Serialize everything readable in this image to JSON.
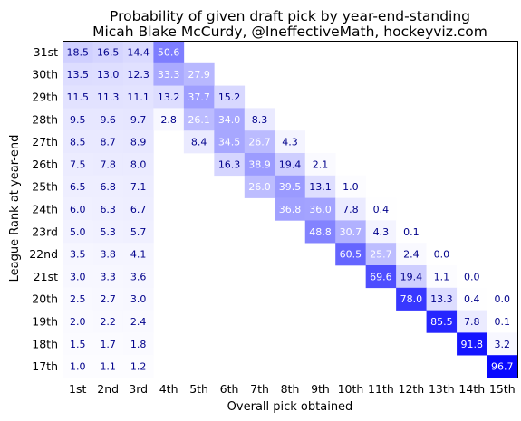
{
  "chart_data": {
    "type": "heatmap",
    "title": "Probability of given draft pick by year-end-standing",
    "subtitle": "Micah Blake McCurdy, @IneffectiveMath, hockeyviz.com",
    "xlabel": "Overall pick obtained",
    "ylabel": "League Rank at year-end",
    "x_categories": [
      "1st",
      "2nd",
      "3rd",
      "4th",
      "5th",
      "6th",
      "7th",
      "8th",
      "9th",
      "10th",
      "11th",
      "12th",
      "13th",
      "14th",
      "15th"
    ],
    "y_categories": [
      "31st",
      "30th",
      "29th",
      "28th",
      "27th",
      "26th",
      "25th",
      "24th",
      "23rd",
      "22nd",
      "21st",
      "20th",
      "19th",
      "18th",
      "17th"
    ],
    "color_low": "#ffffff",
    "color_high": "#0000ff",
    "value_max": 100,
    "label_color_dark": "#00008b",
    "label_color_light": "#ffffff",
    "values": [
      [
        18.5,
        16.5,
        14.4,
        50.6,
        null,
        null,
        null,
        null,
        null,
        null,
        null,
        null,
        null,
        null,
        null
      ],
      [
        13.5,
        13.0,
        12.3,
        33.3,
        27.9,
        null,
        null,
        null,
        null,
        null,
        null,
        null,
        null,
        null,
        null
      ],
      [
        11.5,
        11.3,
        11.1,
        13.2,
        37.7,
        15.2,
        null,
        null,
        null,
        null,
        null,
        null,
        null,
        null,
        null
      ],
      [
        9.5,
        9.6,
        9.7,
        2.8,
        26.1,
        34.0,
        8.3,
        null,
        null,
        null,
        null,
        null,
        null,
        null,
        null
      ],
      [
        8.5,
        8.7,
        8.9,
        null,
        8.4,
        34.5,
        26.7,
        4.3,
        null,
        null,
        null,
        null,
        null,
        null,
        null
      ],
      [
        7.5,
        7.8,
        8.0,
        null,
        null,
        16.3,
        38.9,
        19.4,
        2.1,
        null,
        null,
        null,
        null,
        null,
        null
      ],
      [
        6.5,
        6.8,
        7.1,
        null,
        null,
        null,
        26.0,
        39.5,
        13.1,
        1.0,
        null,
        null,
        null,
        null,
        null
      ],
      [
        6.0,
        6.3,
        6.7,
        null,
        null,
        null,
        null,
        36.8,
        36.0,
        7.8,
        0.4,
        null,
        null,
        null,
        null
      ],
      [
        5.0,
        5.3,
        5.7,
        null,
        null,
        null,
        null,
        null,
        48.8,
        30.7,
        4.3,
        0.1,
        null,
        null,
        null
      ],
      [
        3.5,
        3.8,
        4.1,
        null,
        null,
        null,
        null,
        null,
        null,
        60.5,
        25.7,
        2.4,
        0.0,
        null,
        null
      ],
      [
        3.0,
        3.3,
        3.6,
        null,
        null,
        null,
        null,
        null,
        null,
        null,
        69.6,
        19.4,
        1.1,
        0.0,
        null
      ],
      [
        2.5,
        2.7,
        3.0,
        null,
        null,
        null,
        null,
        null,
        null,
        null,
        null,
        78.0,
        13.3,
        0.4,
        0.0
      ],
      [
        2.0,
        2.2,
        2.4,
        null,
        null,
        null,
        null,
        null,
        null,
        null,
        null,
        null,
        85.5,
        7.8,
        0.1
      ],
      [
        1.5,
        1.7,
        1.8,
        null,
        null,
        null,
        null,
        null,
        null,
        null,
        null,
        null,
        null,
        91.8,
        3.2
      ],
      [
        1.0,
        1.1,
        1.2,
        null,
        null,
        null,
        null,
        null,
        null,
        null,
        null,
        null,
        null,
        null,
        96.7
      ]
    ]
  }
}
